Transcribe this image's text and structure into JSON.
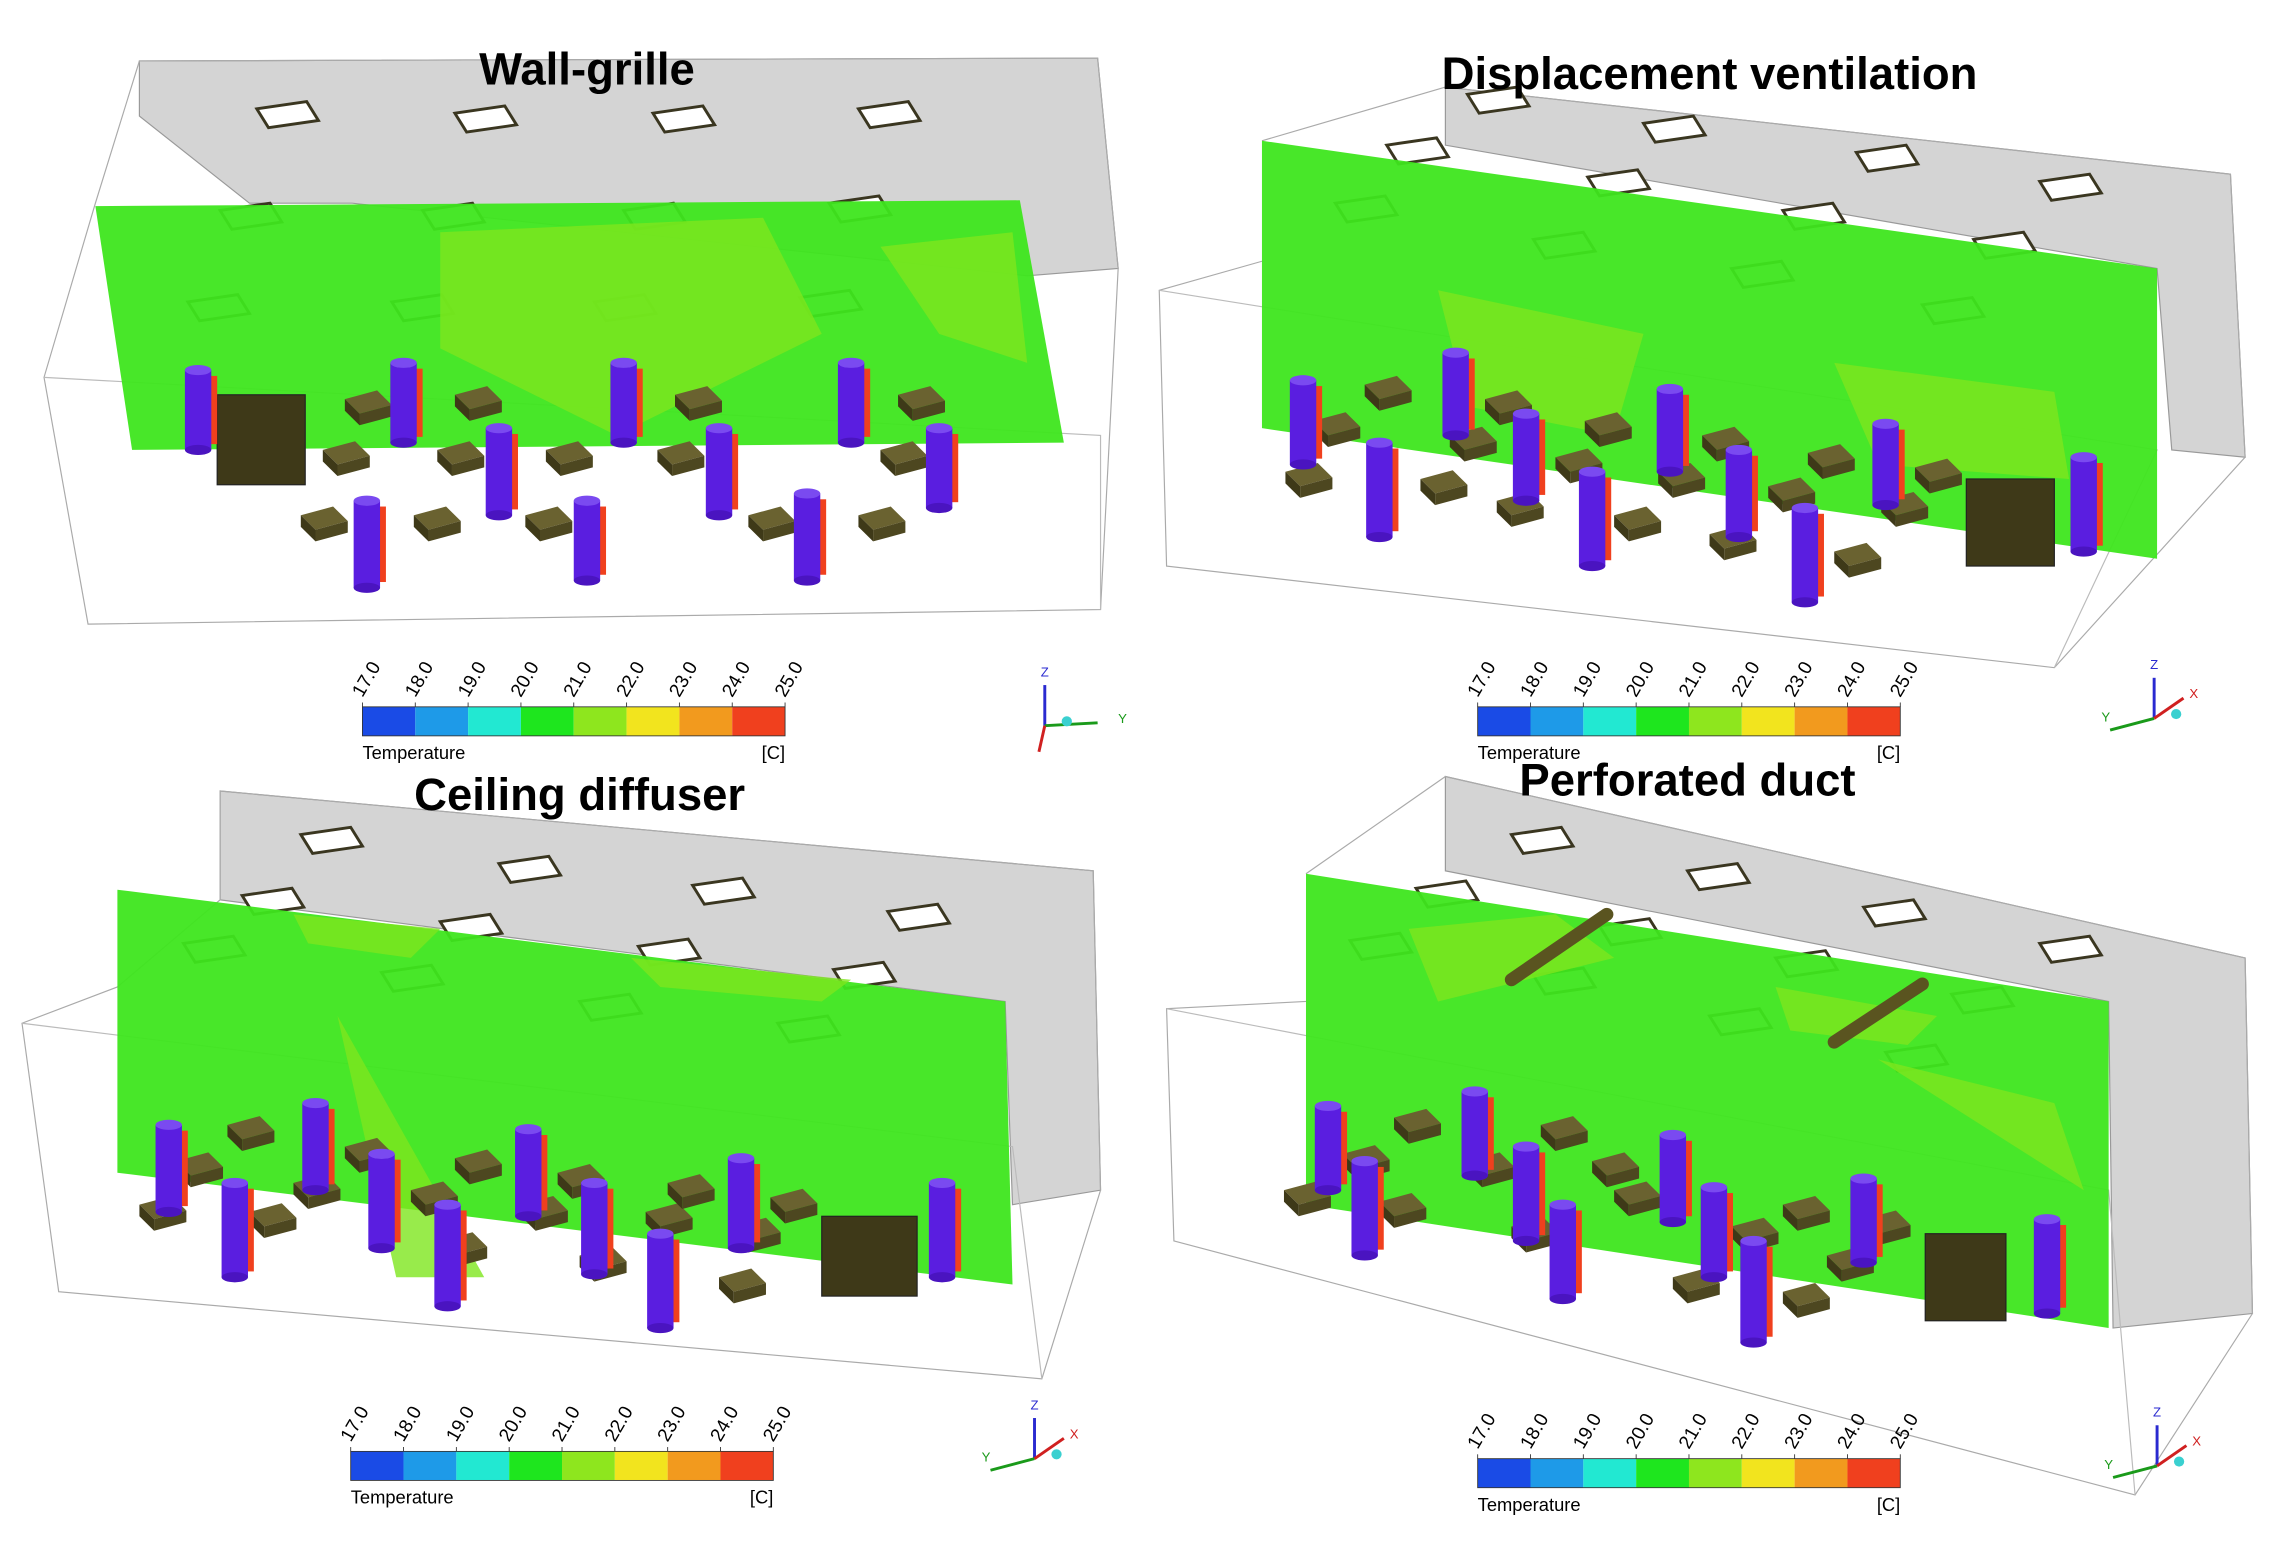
{
  "panels": [
    {
      "title": "Wall-grille",
      "colorbar": {
        "title": "Temperature",
        "unit": "[C]",
        "ticks": [
          {
            "value": 17,
            "label": "17.0"
          },
          {
            "value": 18,
            "label": "18.0"
          },
          {
            "value": 19,
            "label": "19.0"
          },
          {
            "value": 20,
            "label": "20.0"
          },
          {
            "value": 21,
            "label": "21.0"
          },
          {
            "value": 22,
            "label": "22.0"
          },
          {
            "value": 23,
            "label": "23.0"
          },
          {
            "value": 24,
            "label": "24.0"
          },
          {
            "value": 25,
            "label": "25.0"
          }
        ],
        "colors": [
          "#1a4be6",
          "#1e9ae8",
          "#22e8d2",
          "#1ee61e",
          "#8ee61e",
          "#f2e41e",
          "#f29a1e",
          "#f0401e"
        ]
      },
      "axes": {
        "up": "Z",
        "right": "Y"
      }
    },
    {
      "title": "Displacement ventilation",
      "colorbar": {
        "title": "Temperature",
        "unit": "[C]",
        "ticks": [
          {
            "value": 17,
            "label": "17.0"
          },
          {
            "value": 18,
            "label": "18.0"
          },
          {
            "value": 19,
            "label": "19.0"
          },
          {
            "value": 20,
            "label": "20.0"
          },
          {
            "value": 21,
            "label": "21.0"
          },
          {
            "value": 22,
            "label": "22.0"
          },
          {
            "value": 23,
            "label": "23.0"
          },
          {
            "value": 24,
            "label": "24.0"
          },
          {
            "value": 25,
            "label": "25.0"
          }
        ],
        "colors": [
          "#1a4be6",
          "#1e9ae8",
          "#22e8d2",
          "#1ee61e",
          "#8ee61e",
          "#f2e41e",
          "#f29a1e",
          "#f0401e"
        ]
      },
      "axes": {
        "up": "Z",
        "right": "X",
        "left": "Y"
      }
    },
    {
      "title": "Ceiling diffuser",
      "colorbar": {
        "title": "Temperature",
        "unit": "[C]",
        "ticks": [
          {
            "value": 17,
            "label": "17.0"
          },
          {
            "value": 18,
            "label": "18.0"
          },
          {
            "value": 19,
            "label": "19.0"
          },
          {
            "value": 20,
            "label": "20.0"
          },
          {
            "value": 21,
            "label": "21.0"
          },
          {
            "value": 22,
            "label": "22.0"
          },
          {
            "value": 23,
            "label": "23.0"
          },
          {
            "value": 24,
            "label": "24.0"
          },
          {
            "value": 25,
            "label": "25.0"
          }
        ],
        "colors": [
          "#1a4be6",
          "#1e9ae8",
          "#22e8d2",
          "#1ee61e",
          "#8ee61e",
          "#f2e41e",
          "#f29a1e",
          "#f0401e"
        ]
      },
      "axes": {
        "up": "Z",
        "right": "X",
        "left": "Y"
      }
    },
    {
      "title": "Perforated duct",
      "colorbar": {
        "title": "Temperature",
        "unit": "[C]",
        "ticks": [
          {
            "value": 17,
            "label": "17.0"
          },
          {
            "value": 18,
            "label": "18.0"
          },
          {
            "value": 19,
            "label": "19.0"
          },
          {
            "value": 20,
            "label": "20.0"
          },
          {
            "value": 21,
            "label": "21.0"
          },
          {
            "value": 22,
            "label": "22.0"
          },
          {
            "value": 23,
            "label": "23.0"
          },
          {
            "value": 24,
            "label": "24.0"
          },
          {
            "value": 25,
            "label": "25.0"
          }
        ],
        "colors": [
          "#1a4be6",
          "#1e9ae8",
          "#22e8d2",
          "#1ee61e",
          "#8ee61e",
          "#f2e41e",
          "#f29a1e",
          "#f0401e"
        ]
      },
      "axes": {
        "up": "Z",
        "right": "X",
        "left": "Y"
      }
    }
  ]
}
